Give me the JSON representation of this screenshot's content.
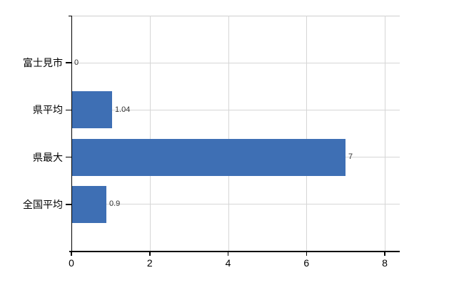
{
  "chart": {
    "background_color": "#ffffff",
    "bar_color": "#3e6fb4",
    "axis_color": "#000000",
    "grid_color": "#d6d6d6",
    "top_border_color": "#cfcfcf",
    "value_label_color": "#333333",
    "tick_label_color": "#000000"
  },
  "chart_data": {
    "type": "bar",
    "orientation": "horizontal",
    "title": "",
    "xlabel": "",
    "ylabel": "",
    "categories": [
      "富士見市",
      "県平均",
      "県最大",
      "全国平均"
    ],
    "values": [
      0,
      1.04,
      7,
      0.9
    ],
    "value_labels": [
      "0",
      "1.04",
      "7",
      "0.9"
    ],
    "xlim": [
      0,
      8.4
    ],
    "xtick_values": [
      0,
      2,
      4,
      6,
      8
    ],
    "xtick_labels": [
      "0",
      "2",
      "4",
      "6",
      "8"
    ],
    "grid": "on",
    "legend": "none"
  }
}
